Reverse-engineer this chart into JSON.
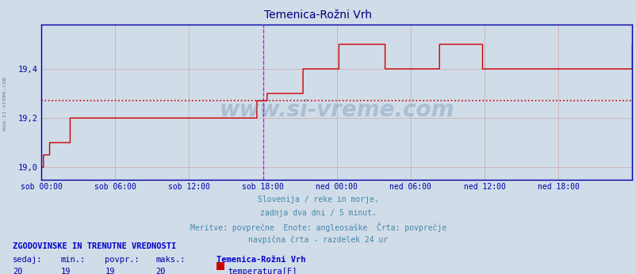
{
  "title": "Temenica-Rožni Vrh",
  "title_color": "#000080",
  "bg_color": "#d0dce8",
  "plot_bg_color": "#d0dce8",
  "line_color": "#cc0000",
  "avg_line_color": "#cc0000",
  "vline_color": "#dd00dd",
  "grid_color": "#cc8888",
  "axis_color": "#0000aa",
  "tick_color": "#0000aa",
  "ylim": [
    18.95,
    19.58
  ],
  "yticks": [
    19.0,
    19.2,
    19.4
  ],
  "ylabel_values": [
    "19,0",
    "19,2",
    "19,4"
  ],
  "avg_value": 19.27,
  "x_num_points": 577,
  "vline_positions": [
    216,
    576
  ],
  "step_data": [
    [
      0,
      19.0
    ],
    [
      2,
      19.05
    ],
    [
      8,
      19.1
    ],
    [
      28,
      19.2
    ],
    [
      210,
      19.27
    ],
    [
      220,
      19.3
    ],
    [
      255,
      19.4
    ],
    [
      290,
      19.5
    ],
    [
      335,
      19.4
    ],
    [
      388,
      19.5
    ],
    [
      430,
      19.4
    ],
    [
      572,
      19.4
    ],
    [
      576,
      19.5
    ]
  ],
  "xlabel_ticks": [
    0,
    72,
    144,
    216,
    288,
    360,
    432,
    504,
    576
  ],
  "xlabel_labels": [
    "sob 00:00",
    "sob 06:00",
    "sob 12:00",
    "sob 18:00",
    "ned 00:00",
    "ned 06:00",
    "ned 12:00",
    "ned 18:00"
  ],
  "watermark": "www.si-vreme.com",
  "watermark_color": "#0000aa",
  "subtitle_lines": [
    "Slovenija / reke in morje.",
    "zadnja dva dni / 5 minut.",
    "Meritve: povprečne  Enote: angleosaške  Črta: povprečje",
    "navpična črta - razdelek 24 ur"
  ],
  "subtitle_color": "#4488aa",
  "legend_title": "ZGODOVINSKE IN TRENUTNE VREDNOSTI",
  "legend_title_color": "#0000cc",
  "legend_headers": [
    "sedaj:",
    "min.:",
    "povpr.:",
    "maks.:"
  ],
  "legend_values": [
    "20",
    "19",
    "19",
    "20"
  ],
  "legend_station": "Temenica-Rožni Vrh",
  "legend_measure": "temperatura[F]",
  "legend_color": "#0000aa",
  "left_label": "www.si-vreme.com"
}
